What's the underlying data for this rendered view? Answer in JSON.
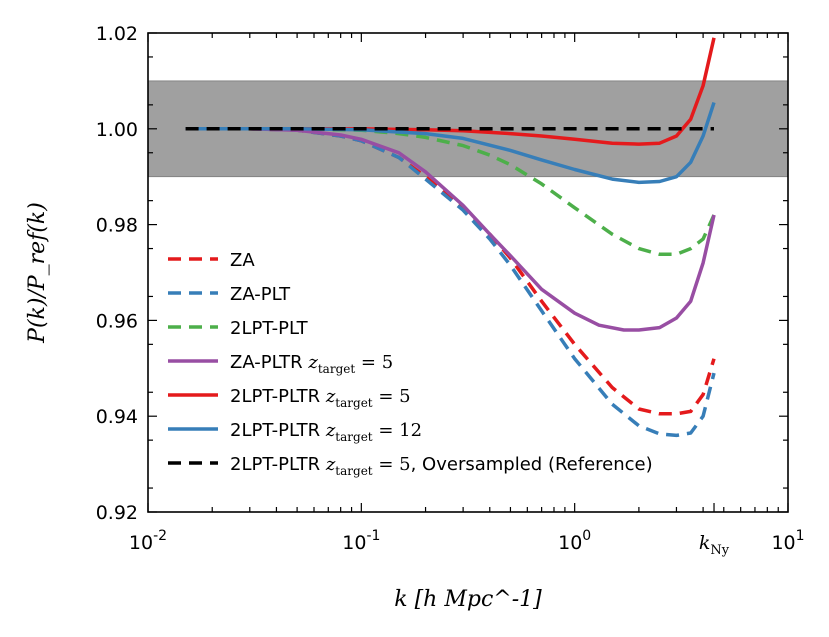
{
  "chart_data": {
    "type": "line",
    "title": "",
    "xlabel": "k [h Mpc^-1]",
    "ylabel": "P(k)/P_ref(k)",
    "xscale": "log",
    "xlim": [
      0.01,
      10
    ],
    "ylim": [
      0.92,
      1.02
    ],
    "xticks": [
      {
        "value": 0.01,
        "base": "10",
        "exp": "-2"
      },
      {
        "value": 0.1,
        "base": "10",
        "exp": "-1"
      },
      {
        "value": 1,
        "base": "10",
        "exp": "0"
      },
      {
        "value": 10,
        "base": "10",
        "exp": "1"
      }
    ],
    "yticks": [
      {
        "value": 0.92,
        "label": "0.92"
      },
      {
        "value": 0.94,
        "label": "0.94"
      },
      {
        "value": 0.96,
        "label": "0.96"
      },
      {
        "value": 0.98,
        "label": "0.98"
      },
      {
        "value": 1.0,
        "label": "1.00"
      },
      {
        "value": 1.02,
        "label": "1.02"
      }
    ],
    "nyquist_marker": {
      "value": 4.5,
      "label": "k",
      "sub": "Ny"
    },
    "band": {
      "ymin": 0.99,
      "ymax": 1.01,
      "color": "#a0a0a0"
    },
    "legend_position": "lower-left",
    "series": [
      {
        "name": "ZA",
        "label_parts": [
          "ZA"
        ],
        "color": "#e41a1c",
        "dash": "dashed",
        "x": [
          0.015,
          0.03,
          0.05,
          0.08,
          0.1,
          0.15,
          0.2,
          0.3,
          0.4,
          0.5,
          0.7,
          1.0,
          1.5,
          2.0,
          2.5,
          3.0,
          3.5,
          4.0,
          4.5
        ],
        "y": [
          1.0,
          1.0,
          0.9997,
          0.9985,
          0.9975,
          0.994,
          0.99,
          0.9835,
          0.978,
          0.973,
          0.964,
          0.955,
          0.946,
          0.9415,
          0.9405,
          0.9405,
          0.941,
          0.9445,
          0.952
        ]
      },
      {
        "name": "ZA-PLT",
        "label_parts": [
          "ZA-PLT"
        ],
        "color": "#377eb8",
        "dash": "dashed",
        "x": [
          0.015,
          0.03,
          0.05,
          0.08,
          0.1,
          0.15,
          0.2,
          0.3,
          0.4,
          0.5,
          0.7,
          1.0,
          1.5,
          2.0,
          2.5,
          3.0,
          3.5,
          4.0,
          4.5
        ],
        "y": [
          1.0,
          1.0,
          0.9997,
          0.9985,
          0.9975,
          0.994,
          0.9895,
          0.983,
          0.977,
          0.9715,
          0.962,
          0.952,
          0.9425,
          0.938,
          0.9363,
          0.936,
          0.9365,
          0.94,
          0.949
        ]
      },
      {
        "name": "2LPT-PLT",
        "label_parts": [
          "2LPT-PLT"
        ],
        "color": "#4daf4a",
        "dash": "dashed",
        "x": [
          0.015,
          0.05,
          0.1,
          0.15,
          0.2,
          0.3,
          0.4,
          0.5,
          0.7,
          1.0,
          1.5,
          2.0,
          2.5,
          3.0,
          3.5,
          4.0,
          4.5
        ],
        "y": [
          1.0,
          1.0,
          0.9997,
          0.999,
          0.9982,
          0.9965,
          0.9945,
          0.9925,
          0.9885,
          0.9835,
          0.978,
          0.975,
          0.9738,
          0.9738,
          0.975,
          0.977,
          0.982
        ]
      },
      {
        "name": "ZA-PLTR z_target = 5",
        "label_parts": [
          "ZA-PLTR ",
          "z",
          "target",
          " = 5",
          ""
        ],
        "color": "#984ea3",
        "dash": "solid",
        "x": [
          0.015,
          0.03,
          0.05,
          0.08,
          0.1,
          0.15,
          0.2,
          0.3,
          0.4,
          0.5,
          0.7,
          1.0,
          1.3,
          1.7,
          2.0,
          2.5,
          3.0,
          3.5,
          4.0,
          4.5
        ],
        "y": [
          1.0,
          1.0,
          0.9997,
          0.9987,
          0.9978,
          0.995,
          0.991,
          0.984,
          0.978,
          0.9735,
          0.9665,
          0.9615,
          0.959,
          0.958,
          0.958,
          0.9585,
          0.9605,
          0.964,
          0.972,
          0.982
        ]
      },
      {
        "name": "2LPT-PLTR z_target = 5",
        "label_parts": [
          "2LPT-PLTR ",
          "z",
          "target",
          " = 5",
          ""
        ],
        "color": "#e41a1c",
        "dash": "solid",
        "x": [
          0.015,
          0.05,
          0.1,
          0.2,
          0.3,
          0.5,
          0.7,
          1.0,
          1.5,
          2.0,
          2.5,
          3.0,
          3.5,
          4.0,
          4.5
        ],
        "y": [
          1.0,
          1.0,
          1.0,
          0.9998,
          0.9996,
          0.999,
          0.9985,
          0.9978,
          0.997,
          0.9968,
          0.997,
          0.9985,
          1.002,
          1.009,
          1.019
        ]
      },
      {
        "name": "2LPT-PLTR z_target = 12",
        "label_parts": [
          "2LPT-PLTR ",
          "z",
          "target",
          " = 12",
          ""
        ],
        "color": "#377eb8",
        "dash": "solid",
        "x": [
          0.015,
          0.05,
          0.1,
          0.2,
          0.3,
          0.5,
          0.7,
          1.0,
          1.5,
          2.0,
          2.5,
          3.0,
          3.5,
          4.0,
          4.5
        ],
        "y": [
          1.0,
          1.0,
          0.9998,
          0.999,
          0.998,
          0.9955,
          0.9935,
          0.9915,
          0.9895,
          0.9888,
          0.989,
          0.99,
          0.993,
          0.9985,
          1.0055
        ]
      },
      {
        "name": "2LPT-PLTR z_target = 5, Oversampled (Reference)",
        "label_parts": [
          "2LPT-PLTR ",
          "z",
          "target",
          " = 5",
          ", Oversampled (Reference)"
        ],
        "color": "#000000",
        "dash": "dashed",
        "x": [
          0.015,
          0.1,
          1.0,
          4.5
        ],
        "y": [
          1.0,
          1.0,
          1.0,
          1.0
        ]
      }
    ]
  }
}
